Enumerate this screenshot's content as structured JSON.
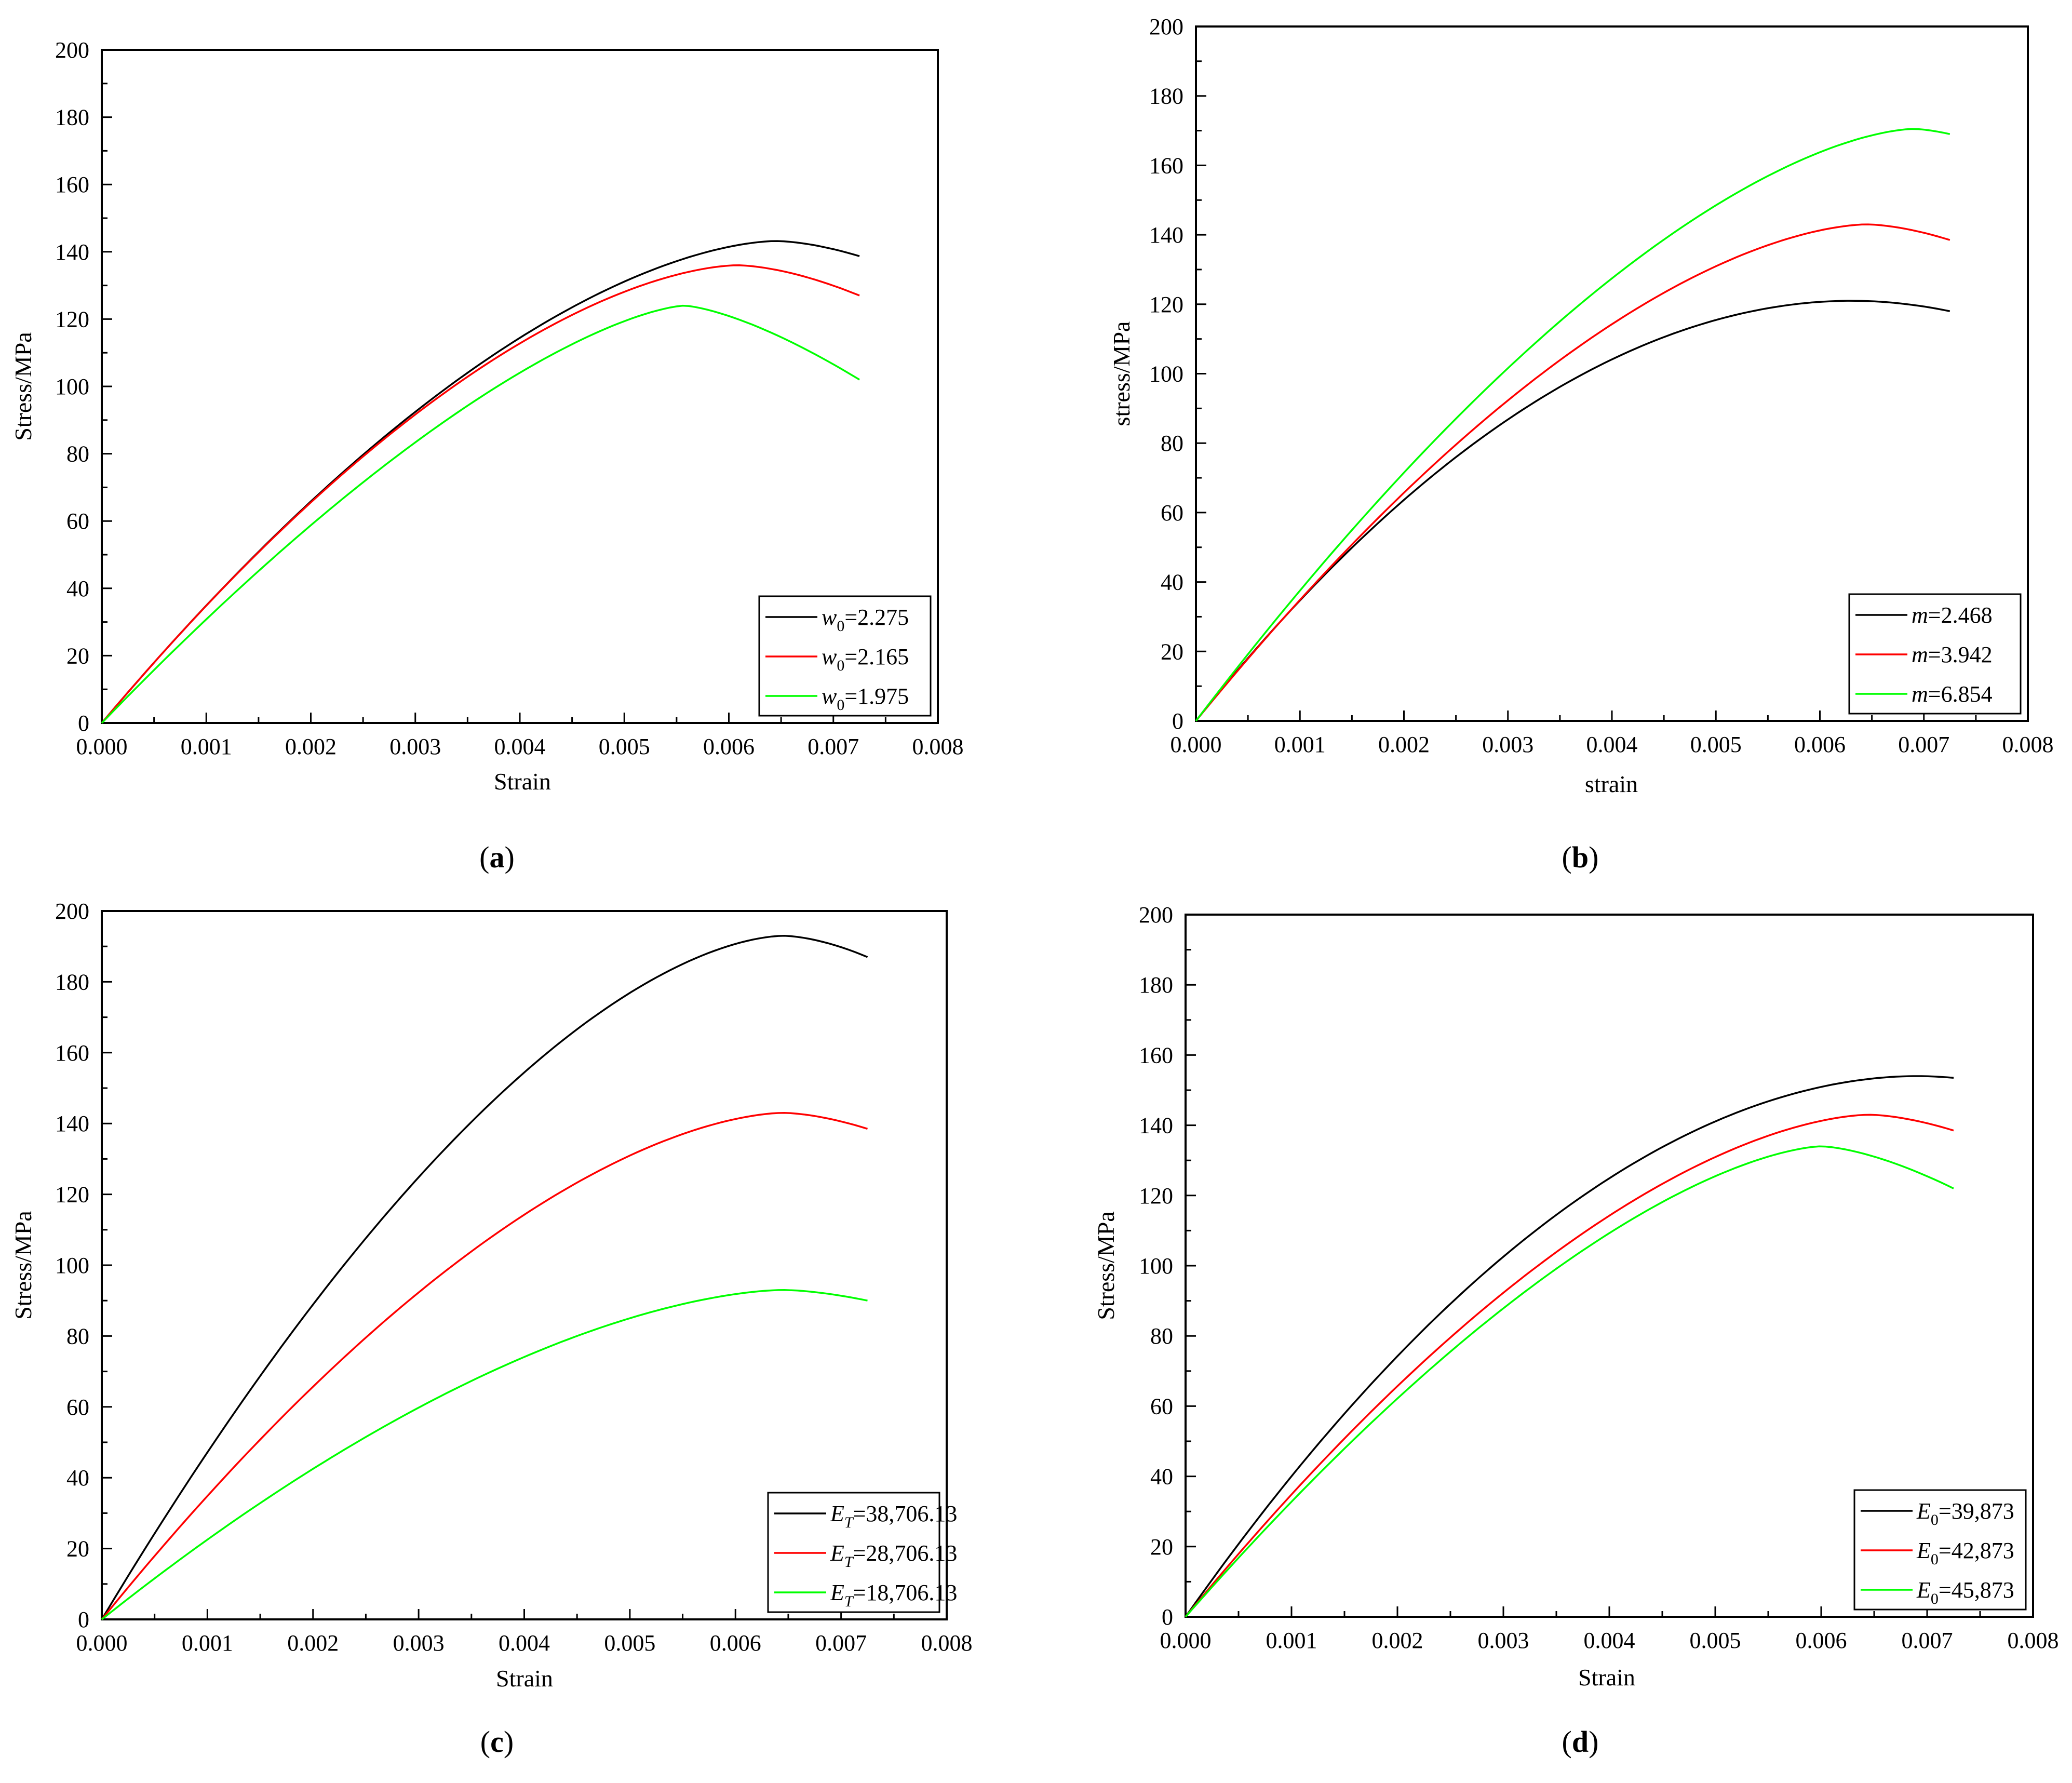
{
  "chart_data": [
    {
      "id": "a",
      "type": "line",
      "panel_label": [
        "(",
        "a",
        ")"
      ],
      "xlabel": "Strain",
      "ylabel": "Stress/MPa",
      "xlim": [
        0,
        0.008
      ],
      "ylim": [
        0,
        200
      ],
      "xticks": [
        "0.000",
        "0.001",
        "0.002",
        "0.003",
        "0.004",
        "0.005",
        "0.006",
        "0.007",
        "0.008"
      ],
      "yticks": [
        "0",
        "20",
        "40",
        "60",
        "80",
        "100",
        "120",
        "140",
        "160",
        "180",
        "200"
      ],
      "legend_position": "bottom-right",
      "series": [
        {
          "name": "w0=2.275",
          "symbol": "w",
          "sub": "0",
          "value": "=2.275",
          "color": "#000000",
          "peak_strain": 0.00645,
          "peak_stress": 143.2,
          "end_stress": 138.7
        },
        {
          "name": "w0=2.165",
          "symbol": "w",
          "sub": "0",
          "value": "=2.165",
          "color": "#ff0000",
          "peak_strain": 0.00608,
          "peak_stress": 136.0,
          "end_stress": 127.0
        },
        {
          "name": "w0=1.975",
          "symbol": "w",
          "sub": "0",
          "value": "=1.975",
          "color": "#00ff00",
          "peak_strain": 0.00557,
          "peak_stress": 124.0,
          "end_stress": 102.0
        }
      ]
    },
    {
      "id": "b",
      "type": "line",
      "panel_label": [
        "(",
        "b",
        ")"
      ],
      "xlabel": "strain",
      "ylabel": "stress/MPa",
      "xlim": [
        0,
        0.008
      ],
      "ylim": [
        0,
        200
      ],
      "xticks": [
        "0.000",
        "0.001",
        "0.002",
        "0.003",
        "0.004",
        "0.005",
        "0.006",
        "0.007",
        "0.008"
      ],
      "yticks": [
        "0",
        "20",
        "40",
        "60",
        "80",
        "100",
        "120",
        "140",
        "160",
        "180",
        "200"
      ],
      "legend_position": "bottom-right",
      "series": [
        {
          "name": "m=2.468",
          "symbol": "m",
          "sub": "",
          "value": "=2.468",
          "color": "#000000",
          "peak_strain": 0.0063,
          "peak_stress": 121.0,
          "end_stress": 118.0
        },
        {
          "name": "m=3.942",
          "symbol": "m",
          "sub": "",
          "value": "=3.942",
          "color": "#ff0000",
          "peak_strain": 0.00645,
          "peak_stress": 143.0,
          "end_stress": 138.5
        },
        {
          "name": "m=6.854",
          "symbol": "m",
          "sub": "",
          "value": "=6.854",
          "color": "#00ff00",
          "peak_strain": 0.0069,
          "peak_stress": 170.5,
          "end_stress": 169.0
        }
      ]
    },
    {
      "id": "c",
      "type": "line",
      "panel_label": [
        "(",
        "c",
        ")"
      ],
      "xlabel": "Strain",
      "ylabel": "Stress/MPa",
      "xlim": [
        0,
        0.008
      ],
      "ylim": [
        0,
        200
      ],
      "xticks": [
        "0.000",
        "0.001",
        "0.002",
        "0.003",
        "0.004",
        "0.005",
        "0.006",
        "0.007",
        "0.008"
      ],
      "yticks": [
        "0",
        "20",
        "40",
        "60",
        "80",
        "100",
        "120",
        "140",
        "160",
        "180",
        "200"
      ],
      "legend_position": "bottom-right",
      "series": [
        {
          "name": "ET=38,706.13",
          "symbol": "E",
          "sub": "T",
          "value": "=38,706.13",
          "color": "#000000",
          "peak_strain": 0.00645,
          "peak_stress": 193.0,
          "end_stress": 187.0
        },
        {
          "name": "ET=28,706.13",
          "symbol": "E",
          "sub": "T",
          "value": "=28,706.13",
          "color": "#ff0000",
          "peak_strain": 0.00645,
          "peak_stress": 143.0,
          "end_stress": 138.5
        },
        {
          "name": "ET=18,706.13",
          "symbol": "E",
          "sub": "T",
          "value": "=18,706.13",
          "color": "#00ff00",
          "peak_strain": 0.00645,
          "peak_stress": 93.0,
          "end_stress": 90.0
        }
      ]
    },
    {
      "id": "d",
      "type": "line",
      "panel_label": [
        "(",
        "d",
        ")"
      ],
      "xlabel": "Strain",
      "ylabel": "Stress/MPa",
      "xlim": [
        0,
        0.008
      ],
      "ylim": [
        0,
        200
      ],
      "xticks": [
        "0.000",
        "0.001",
        "0.002",
        "0.003",
        "0.004",
        "0.005",
        "0.006",
        "0.007",
        "0.008"
      ],
      "yticks": [
        "0",
        "20",
        "40",
        "60",
        "80",
        "100",
        "120",
        "140",
        "160",
        "180",
        "200"
      ],
      "legend_position": "bottom-right",
      "series": [
        {
          "name": "E0=39,873",
          "symbol": "E",
          "sub": "0",
          "value": "=39,873",
          "color": "#000000",
          "peak_strain": 0.0069,
          "peak_stress": 154.0,
          "end_stress": 153.5
        },
        {
          "name": "E0=42,873",
          "symbol": "E",
          "sub": "0",
          "value": "=42,873",
          "color": "#ff0000",
          "peak_strain": 0.00645,
          "peak_stress": 143.0,
          "end_stress": 138.5
        },
        {
          "name": "E0=45,873",
          "symbol": "E",
          "sub": "0",
          "value": "=45,873",
          "color": "#00ff00",
          "peak_strain": 0.006,
          "peak_stress": 134.0,
          "end_stress": 122.0
        }
      ]
    }
  ],
  "curve_model": {
    "end_strain": 0.00725,
    "samples": 120
  }
}
